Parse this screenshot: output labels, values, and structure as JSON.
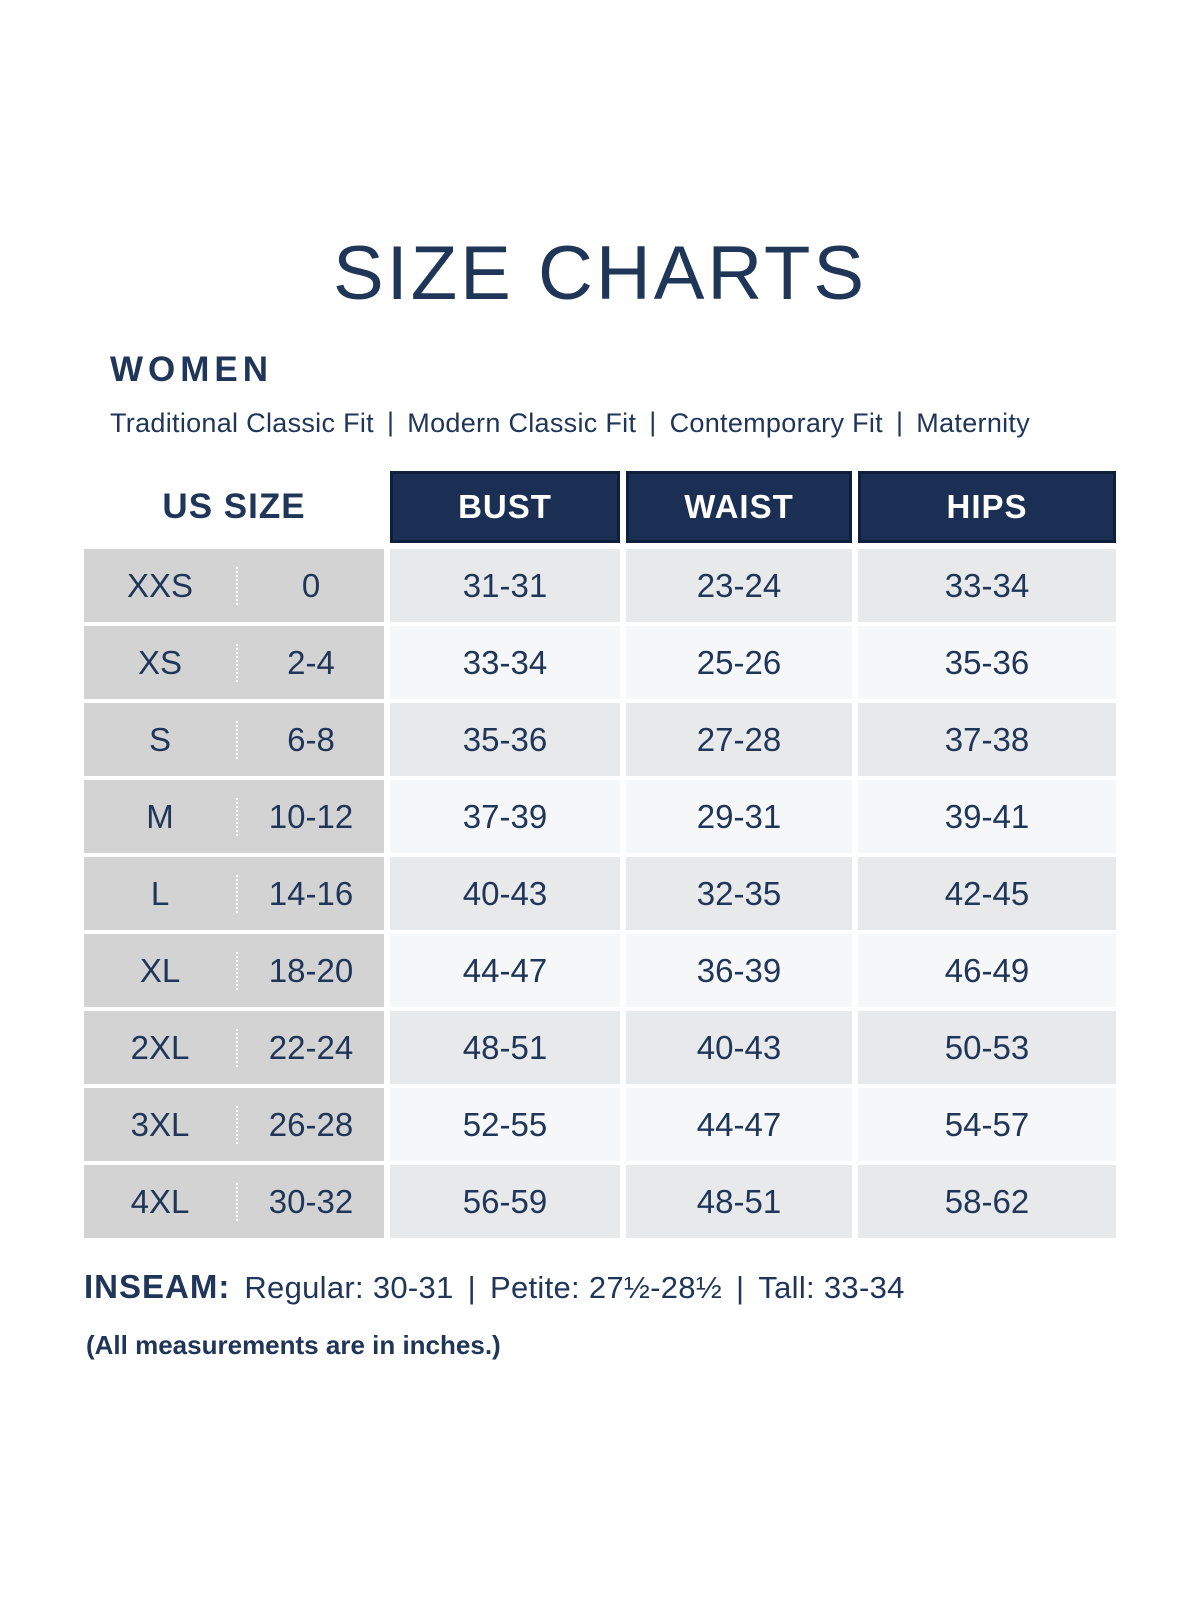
{
  "page": {
    "title": "SIZE CHARTS",
    "section": "WOMEN",
    "fits": [
      "Traditional Classic Fit",
      "Modern Classic Fit",
      "Contemporary Fit",
      "Maternity"
    ],
    "fit_separator": "|"
  },
  "table": {
    "us_size_header": "US SIZE",
    "measure_headers": [
      "BUST",
      "WAIST",
      "HIPS"
    ],
    "rows": [
      {
        "size": "XXS",
        "us": "0",
        "bust": "31-31",
        "waist": "23-24",
        "hips": "33-34"
      },
      {
        "size": "XS",
        "us": "2-4",
        "bust": "33-34",
        "waist": "25-26",
        "hips": "35-36"
      },
      {
        "size": "S",
        "us": "6-8",
        "bust": "35-36",
        "waist": "27-28",
        "hips": "37-38"
      },
      {
        "size": "M",
        "us": "10-12",
        "bust": "37-39",
        "waist": "29-31",
        "hips": "39-41"
      },
      {
        "size": "L",
        "us": "14-16",
        "bust": "40-43",
        "waist": "32-35",
        "hips": "42-45"
      },
      {
        "size": "XL",
        "us": "18-20",
        "bust": "44-47",
        "waist": "36-39",
        "hips": "46-49"
      },
      {
        "size": "2XL",
        "us": "22-24",
        "bust": "48-51",
        "waist": "40-43",
        "hips": "50-53"
      },
      {
        "size": "3XL",
        "us": "26-28",
        "bust": "52-55",
        "waist": "44-47",
        "hips": "54-57"
      },
      {
        "size": "4XL",
        "us": "30-32",
        "bust": "56-59",
        "waist": "48-51",
        "hips": "58-62"
      }
    ]
  },
  "inseam": {
    "label": "INSEAM:",
    "separator": "|",
    "items": [
      "Regular: 30-31",
      "Petite: 27½-28½",
      "Tall: 33-34"
    ]
  },
  "footnote": "(All measurements are in inches.)",
  "colors": {
    "navy": "#1b2f54",
    "navy_border": "#0e1f3d",
    "ink": "#203659",
    "gray_col": "#d3d3d4",
    "row_a": "#e8e9eb",
    "row_b": "#f6f7f8",
    "page_bg": "#ffffff"
  }
}
